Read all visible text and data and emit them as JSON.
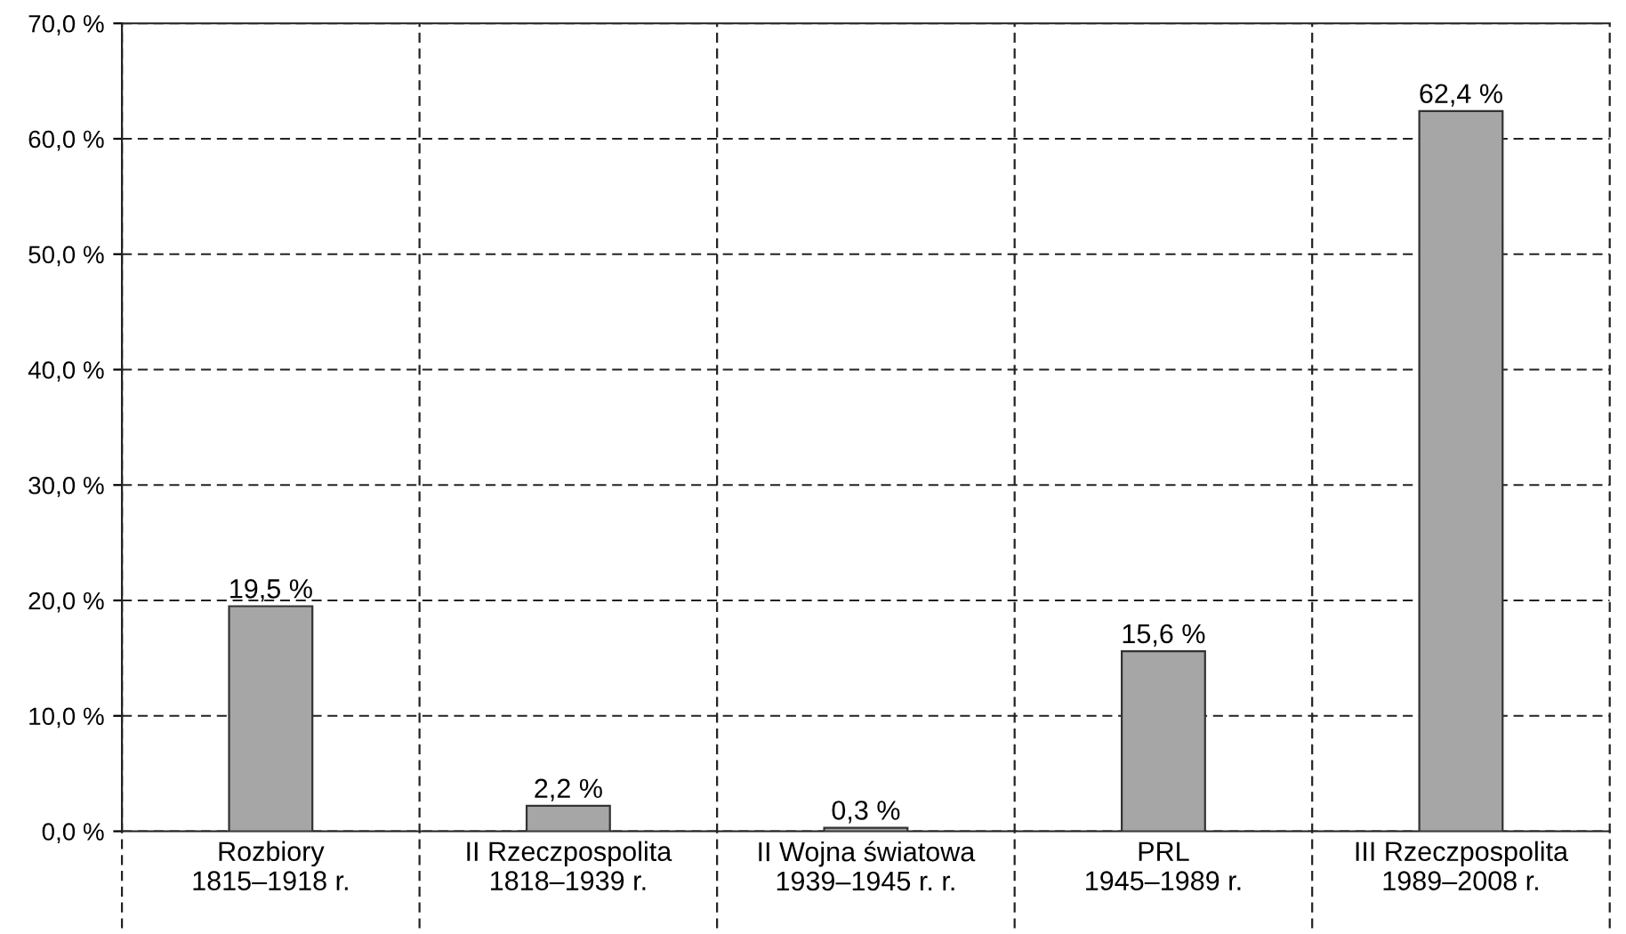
{
  "chart_data": {
    "type": "bar",
    "categories": [
      "Rozbiory\n1815–1918 r.",
      "II Rzeczpospolita\n1818–1939 r.",
      "II Wojna światowa\n1939–1945 r. r.",
      "PRL\n1945–1989 r.",
      "III Rzeczpospolita\n1989–2008 r."
    ],
    "values": [
      19.5,
      2.2,
      0.3,
      15.6,
      62.4
    ],
    "value_labels": [
      "19,5 %",
      "2,2 %",
      "0,3 %",
      "15,6 %",
      "62,4 %"
    ],
    "color": "#a6a6a6",
    "ylim": [
      0,
      70
    ],
    "yticks": [
      {
        "value": 0,
        "label": "0,0 %"
      },
      {
        "value": 10,
        "label": "10,0 %"
      },
      {
        "value": 20,
        "label": "20,0 %"
      },
      {
        "value": 30,
        "label": "30,0 %"
      },
      {
        "value": 40,
        "label": "40,0 %"
      },
      {
        "value": 50,
        "label": "50,0 %"
      },
      {
        "value": 60,
        "label": "60,0 %"
      },
      {
        "value": 70,
        "label": "70,0 %"
      }
    ],
    "grid": true
  }
}
